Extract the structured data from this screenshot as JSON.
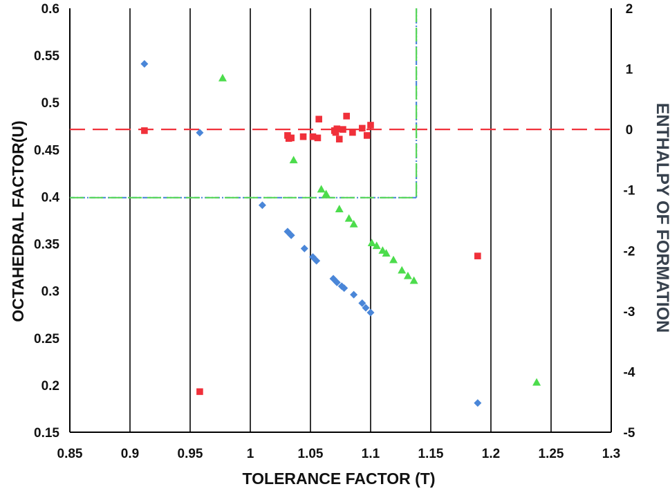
{
  "chart_data": {
    "type": "scatter",
    "xlabel": "TOLERANCE FACTOR (T)",
    "ylabel": "OCTAHEDRAL FACTOR(U)",
    "y2label": "ENTHALPY OF FORMATION",
    "xlim": [
      0.85,
      1.3
    ],
    "ylim": [
      0.15,
      0.6
    ],
    "y2lim": [
      -5,
      2
    ],
    "xticks": [
      "0.85",
      "0.9",
      "0.95",
      "1",
      "1.05",
      "1.1",
      "1.15",
      "1.2",
      "1.25",
      "1.3"
    ],
    "yticks": [
      "0.15",
      "0.2",
      "0.25",
      "0.3",
      "0.35",
      "0.4",
      "0.45",
      "0.5",
      "0.55",
      "0.6"
    ],
    "y2ticks": [
      "-5",
      "-4",
      "-3",
      "-2",
      "-1",
      "0",
      "1",
      "2"
    ],
    "grid": "vertical",
    "colors": {
      "diamond": "#4a86d8",
      "square": "#f0303a",
      "triangle": "#4cdc4c",
      "dash_red": "#f0303a",
      "dash_green": "#56d656",
      "dash_blue": "#4a86d8"
    },
    "reference_lines": [
      {
        "axis": "y2",
        "value": 0.0,
        "color": "#f0303a",
        "style": "dashed"
      },
      {
        "axis": "y",
        "value": 0.399,
        "x_range": [
          0.85,
          1.138
        ],
        "color": "#56d656",
        "style": "dash-dot"
      },
      {
        "axis": "x",
        "value": 1.138,
        "y_range": [
          0.399,
          0.6
        ],
        "color": "#56d656",
        "style": "dash-dot"
      }
    ],
    "series": [
      {
        "marker": "diamond",
        "axis": "y",
        "x": [
          0.912,
          0.958,
          1.01,
          1.031,
          1.034,
          1.045,
          1.052,
          1.055,
          1.069,
          1.072,
          1.076,
          1.078,
          1.086,
          1.093,
          1.096,
          1.1,
          1.189
        ],
        "y": [
          0.541,
          0.468,
          0.391,
          0.363,
          0.359,
          0.345,
          0.336,
          0.332,
          0.313,
          0.309,
          0.305,
          0.303,
          0.296,
          0.287,
          0.282,
          0.277,
          0.181
        ]
      },
      {
        "marker": "square",
        "axis": "y2",
        "x": [
          0.912,
          0.958,
          1.031,
          1.032,
          1.034,
          1.044,
          1.052,
          1.056,
          1.057,
          1.07,
          1.071,
          1.072,
          1.074,
          1.077,
          1.08,
          1.085,
          1.093,
          1.097,
          1.1,
          1.189
        ],
        "y": [
          -0.02,
          -4.33,
          -0.1,
          -0.15,
          -0.14,
          -0.12,
          -0.12,
          -0.14,
          0.17,
          -0.02,
          -0.05,
          0.01,
          -0.16,
          0.0,
          0.22,
          -0.05,
          0.02,
          -0.1,
          0.07,
          -2.09
        ]
      },
      {
        "marker": "triangle",
        "axis": "y",
        "x": [
          0.977,
          1.036,
          1.059,
          1.063,
          1.074,
          1.082,
          1.086,
          1.101,
          1.105,
          1.11,
          1.113,
          1.119,
          1.126,
          1.131,
          1.136,
          1.238
        ],
        "y": [
          0.526,
          0.439,
          0.408,
          0.403,
          0.387,
          0.377,
          0.371,
          0.351,
          0.348,
          0.343,
          0.34,
          0.333,
          0.322,
          0.316,
          0.311,
          0.203
        ]
      }
    ]
  }
}
